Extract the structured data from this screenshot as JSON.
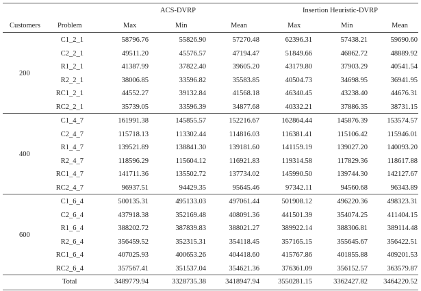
{
  "headers": {
    "group_a": "ACS-DVRP",
    "group_b": "Insertion Heuristic-DVRP",
    "customers": "Customers",
    "problem": "Problem",
    "max_a": "Max",
    "min_a": "Min",
    "mean_a": "Mean",
    "max_b": "Max",
    "min_b": "Min",
    "mean_b": "Mean"
  },
  "groups": [
    {
      "customers": "200",
      "rows": [
        {
          "problem": "C1_2_1",
          "vals": [
            "58796.76",
            "55826.90",
            "57270.48",
            "62396.31",
            "57438.21",
            "59690.60"
          ]
        },
        {
          "problem": "C2_2_1",
          "vals": [
            "49511.20",
            "45576.57",
            "47194.47",
            "51849.66",
            "46862.72",
            "48889.92"
          ]
        },
        {
          "problem": "R1_2_1",
          "vals": [
            "41387.99",
            "37822.40",
            "39605.20",
            "43179.80",
            "37903.29",
            "40541.54"
          ]
        },
        {
          "problem": "R2_2_1",
          "vals": [
            "38006.85",
            "33596.82",
            "35583.85",
            "40504.73",
            "34698.95",
            "36941.95"
          ]
        },
        {
          "problem": "RC1_2_1",
          "vals": [
            "44552.27",
            "39132.84",
            "41568.18",
            "46340.45",
            "43238.40",
            "44676.31"
          ]
        },
        {
          "problem": "RC2_2_1",
          "vals": [
            "35739.05",
            "33596.39",
            "34877.68",
            "40332.21",
            "37886.35",
            "38731.15"
          ]
        }
      ]
    },
    {
      "customers": "400",
      "rows": [
        {
          "problem": "C1_4_7",
          "vals": [
            "161991.38",
            "145855.57",
            "152216.67",
            "162864.44",
            "145876.39",
            "153574.57"
          ]
        },
        {
          "problem": "C2_4_7",
          "vals": [
            "115718.13",
            "113302.44",
            "114816.03",
            "116381.41",
            "115106.42",
            "115946.01"
          ]
        },
        {
          "problem": "R1_4_7",
          "vals": [
            "139521.89",
            "138841.30",
            "139181.60",
            "141159.19",
            "139027.20",
            "140093.20"
          ]
        },
        {
          "problem": "R2_4_7",
          "vals": [
            "118596.29",
            "115604.12",
            "116921.83",
            "119314.58",
            "117829.36",
            "118617.88"
          ]
        },
        {
          "problem": "RC1_4_7",
          "vals": [
            "141711.36",
            "135502.72",
            "137734.02",
            "145990.50",
            "139744.30",
            "142127.67"
          ]
        },
        {
          "problem": "RC2_4_7",
          "vals": [
            "96937.51",
            "94429.35",
            "95645.46",
            "97342.11",
            "94560.68",
            "96343.89"
          ]
        }
      ]
    },
    {
      "customers": "600",
      "rows": [
        {
          "problem": "C1_6_4",
          "vals": [
            "500135.31",
            "495133.03",
            "497061.44",
            "501908.12",
            "496220.36",
            "498323.31"
          ]
        },
        {
          "problem": "C2_6_4",
          "vals": [
            "437918.38",
            "352169.48",
            "408091.36",
            "441501.39",
            "354074.25",
            "411404.15"
          ]
        },
        {
          "problem": "R1_6_4",
          "vals": [
            "388202.72",
            "387839.83",
            "388021.27",
            "389922.14",
            "388306.81",
            "389114.48"
          ]
        },
        {
          "problem": "R2_6_4",
          "vals": [
            "356459.52",
            "352315.31",
            "354118.45",
            "357165.15",
            "355645.67",
            "356422.51"
          ]
        },
        {
          "problem": "RC1_6_4",
          "vals": [
            "407025.93",
            "400653.26",
            "404418.60",
            "415767.86",
            "401855.88",
            "409201.53"
          ]
        },
        {
          "problem": "RC2_6_4",
          "vals": [
            "357567.41",
            "351537.04",
            "354621.36",
            "376361.09",
            "356152.57",
            "363579.87"
          ]
        }
      ]
    }
  ],
  "total": {
    "label": "Total",
    "vals": [
      "3489779.94",
      "3328735.38",
      "3418947.94",
      "3550281.15",
      "3362427.82",
      "3464220.52"
    ]
  }
}
